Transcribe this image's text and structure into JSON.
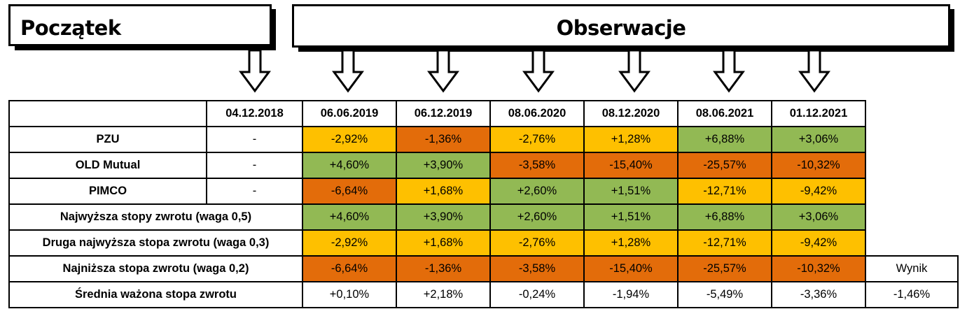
{
  "headers": {
    "start": "Początek",
    "observations": "Obserwacje"
  },
  "dates": [
    "04.12.2018",
    "06.06.2019",
    "06.12.2019",
    "08.06.2020",
    "08.12.2020",
    "08.06.2021",
    "01.12.2021"
  ],
  "rows": [
    {
      "label": "PZU",
      "start": "-",
      "values": [
        "-2,92%",
        "-1,36%",
        "-2,76%",
        "+1,28%",
        "+6,88%",
        "+3,06%"
      ],
      "colors": [
        "y",
        "o",
        "y",
        "y",
        "g",
        "g"
      ]
    },
    {
      "label": "OLD Mutual",
      "start": "-",
      "values": [
        "+4,60%",
        "+3,90%",
        "-3,58%",
        "-15,40%",
        "-25,57%",
        "-10,32%"
      ],
      "colors": [
        "g",
        "g",
        "o",
        "o",
        "o",
        "o"
      ]
    },
    {
      "label": "PIMCO",
      "start": "-",
      "values": [
        "-6,64%",
        "+1,68%",
        "+2,60%",
        "+1,51%",
        "-12,71%",
        "-9,42%"
      ],
      "colors": [
        "o",
        "y",
        "g",
        "g",
        "y",
        "y"
      ]
    },
    {
      "label": "Najwyższa stopy zwrotu (waga 0,5)",
      "values": [
        "+4,60%",
        "+3,90%",
        "+2,60%",
        "+1,51%",
        "+6,88%",
        "+3,06%"
      ],
      "colors": [
        "g",
        "g",
        "g",
        "g",
        "g",
        "g"
      ]
    },
    {
      "label": "Druga najwyższa stopa zwrotu (waga 0,3)",
      "values": [
        "-2,92%",
        "+1,68%",
        "-2,76%",
        "+1,28%",
        "-12,71%",
        "-9,42%"
      ],
      "colors": [
        "y",
        "y",
        "y",
        "y",
        "y",
        "y"
      ]
    },
    {
      "label": "Najniższa stopa zwrotu (waga 0,2)",
      "values": [
        "-6,64%",
        "-1,36%",
        "-3,58%",
        "-15,40%",
        "-25,57%",
        "-10,32%"
      ],
      "colors": [
        "o",
        "o",
        "o",
        "o",
        "o",
        "o"
      ]
    }
  ],
  "result_label": "Wynik",
  "weighted": {
    "label": "Średnia ważona stopa zwrotu",
    "values": [
      "+0,10%",
      "+2,18%",
      "-0,24%",
      "-1,94%",
      "-5,49%",
      "-3,36%"
    ],
    "result": "-1,46%"
  },
  "colors": {
    "green": "#92b954",
    "yellow": "#fec000",
    "orange": "#e36c0a"
  }
}
